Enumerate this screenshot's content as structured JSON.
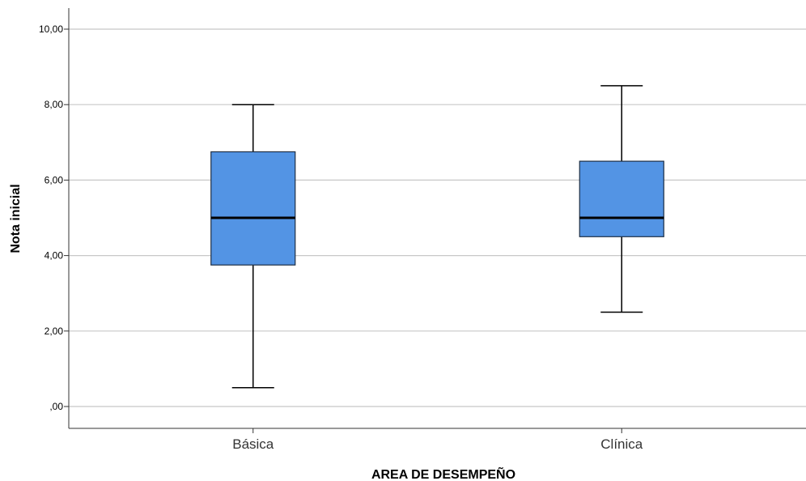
{
  "chart_data": {
    "type": "boxplot",
    "xlabel": "AREA DE DESEMPEÑO",
    "ylabel": "Nota inicial",
    "ylim": [
      -0.6,
      10.6
    ],
    "yticks": [
      0,
      2,
      4,
      6,
      8,
      10
    ],
    "ytick_labels": [
      ",00",
      "2,00",
      "4,00",
      "6,00",
      "8,00",
      "10,00"
    ],
    "grid": "horizontal",
    "box_color": "#5394E4",
    "categories": [
      "Básica",
      "Clínica"
    ],
    "boxes": [
      {
        "category": "Básica",
        "min": 0.5,
        "q1": 3.75,
        "median": 5.0,
        "q3": 6.75,
        "max": 8.0
      },
      {
        "category": "Clínica",
        "min": 2.5,
        "q1": 4.5,
        "median": 5.0,
        "q3": 6.5,
        "max": 8.5
      }
    ]
  }
}
